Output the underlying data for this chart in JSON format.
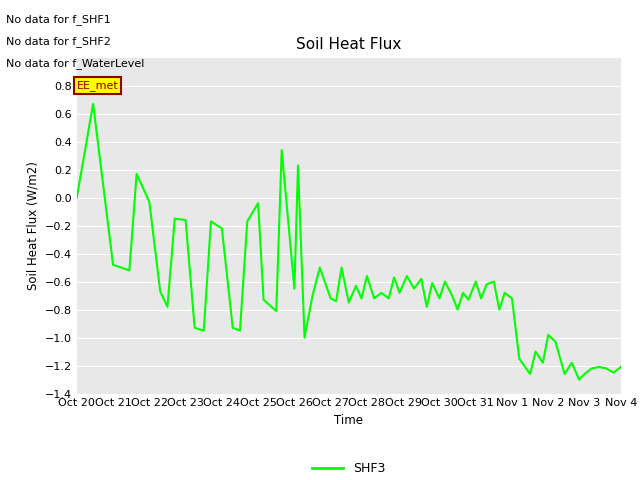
{
  "title": "Soil Heat Flux",
  "ylabel": "Soil Heat Flux (W/m2)",
  "xlabel": "Time",
  "ylim": [
    -1.4,
    1.0
  ],
  "yticks": [
    -1.4,
    -1.2,
    -1.0,
    -0.8,
    -0.6,
    -0.4,
    -0.2,
    0.0,
    0.2,
    0.4,
    0.6,
    0.8
  ],
  "line_color": "#00ff00",
  "line_width": 1.5,
  "fig_bg_color": "#ffffff",
  "plot_bg": "#e8e8e8",
  "grid_color": "#ffffff",
  "no_data_texts": [
    "No data for f_SHF1",
    "No data for f_SHF2",
    "No data for f_WaterLevel"
  ],
  "annotation_text": "EE_met",
  "annotation_color": "#8b0000",
  "annotation_bg": "#ffff00",
  "legend_label": "SHF3",
  "xtick_labels": [
    "Oct 20",
    "Oct 21",
    "Oct 22",
    "Oct 23",
    "Oct 24",
    "Oct 25",
    "Oct 26",
    "Oct 27",
    "Oct 28",
    "Oct 29",
    "Oct 30",
    "Oct 31",
    "Nov 1",
    "Nov 2",
    "Nov 3",
    "Nov 4"
  ],
  "x_values": [
    0.0,
    0.45,
    1.0,
    1.45,
    1.65,
    2.0,
    2.3,
    2.5,
    2.7,
    3.0,
    3.25,
    3.5,
    3.7,
    4.0,
    4.3,
    4.5,
    4.7,
    5.0,
    5.15,
    5.5,
    5.65,
    6.0,
    6.1,
    6.28,
    6.5,
    6.7,
    7.0,
    7.15,
    7.3,
    7.5,
    7.7,
    7.85,
    8.0,
    8.2,
    8.4,
    8.6,
    8.75,
    8.9,
    9.1,
    9.3,
    9.5,
    9.65,
    9.8,
    10.0,
    10.15,
    10.35,
    10.5,
    10.65,
    10.8,
    11.0,
    11.15,
    11.3,
    11.5,
    11.65,
    11.8,
    12.0,
    12.2,
    12.5,
    12.65,
    12.85,
    13.0,
    13.2,
    13.45,
    13.65,
    13.85,
    14.0,
    14.2,
    14.4,
    14.6,
    14.8,
    15.0
  ],
  "y_values": [
    0.0,
    0.67,
    -0.48,
    -0.52,
    0.17,
    -0.03,
    -0.67,
    -0.78,
    -0.15,
    -0.16,
    -0.93,
    -0.95,
    -0.17,
    -0.22,
    -0.93,
    -0.95,
    -0.17,
    -0.04,
    -0.73,
    -0.81,
    0.34,
    -0.65,
    0.23,
    -1.0,
    -0.7,
    -0.5,
    -0.72,
    -0.74,
    -0.5,
    -0.75,
    -0.63,
    -0.72,
    -0.56,
    -0.72,
    -0.68,
    -0.72,
    -0.57,
    -0.68,
    -0.56,
    -0.65,
    -0.58,
    -0.78,
    -0.61,
    -0.72,
    -0.6,
    -0.7,
    -0.8,
    -0.68,
    -0.73,
    -0.6,
    -0.72,
    -0.62,
    -0.6,
    -0.8,
    -0.68,
    -0.72,
    -1.15,
    -1.26,
    -1.1,
    -1.18,
    -0.98,
    -1.03,
    -1.26,
    -1.18,
    -1.3,
    -1.26,
    -1.22,
    -1.21,
    -1.22,
    -1.25,
    -1.21
  ]
}
